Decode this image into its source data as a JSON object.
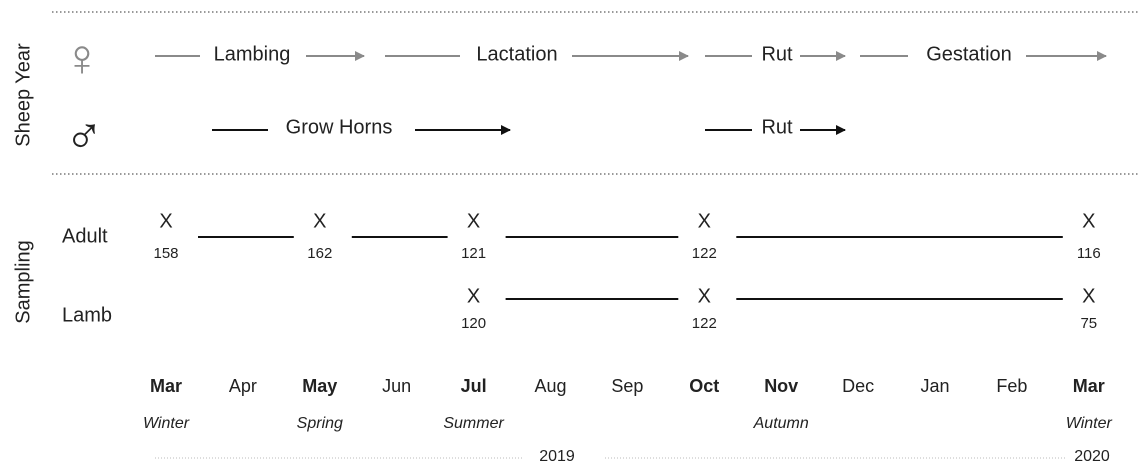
{
  "sections": {
    "sheep_year": "Sheep Year",
    "sampling": "Sampling"
  },
  "female": {
    "symbol": "♀",
    "phases": [
      "Lambing",
      "Lactation",
      "Rut",
      "Gestation"
    ]
  },
  "male": {
    "symbol": "♂",
    "phases": [
      "Grow Horns",
      "Rut"
    ]
  },
  "sampling": {
    "rows": [
      {
        "label": "Adult",
        "samples": [
          {
            "mark": "X",
            "count": 158
          },
          {
            "mark": "X",
            "count": 162
          },
          {
            "mark": "X",
            "count": 121
          },
          {
            "mark": "X",
            "count": 122
          },
          {
            "mark": "X",
            "count": 116
          }
        ]
      },
      {
        "label": "Lamb",
        "samples": [
          {
            "mark": "X",
            "count": 120
          },
          {
            "mark": "X",
            "count": 122
          },
          {
            "mark": "X",
            "count": 75
          }
        ]
      }
    ]
  },
  "months": [
    {
      "label": "Mar",
      "bold": true,
      "season": "Winter"
    },
    {
      "label": "Apr",
      "bold": false
    },
    {
      "label": "May",
      "bold": true,
      "season": "Spring"
    },
    {
      "label": "Jun",
      "bold": false
    },
    {
      "label": "Jul",
      "bold": true,
      "season": "Summer"
    },
    {
      "label": "Aug",
      "bold": false
    },
    {
      "label": "Sep",
      "bold": false
    },
    {
      "label": "Oct",
      "bold": true
    },
    {
      "label": "Nov",
      "bold": true,
      "season": "Autumn"
    },
    {
      "label": "Dec",
      "bold": false
    },
    {
      "label": "Jan",
      "bold": false
    },
    {
      "label": "Feb",
      "bold": false
    },
    {
      "label": "Mar",
      "bold": true,
      "season": "Winter"
    }
  ],
  "years": [
    "2019",
    "2020"
  ]
}
